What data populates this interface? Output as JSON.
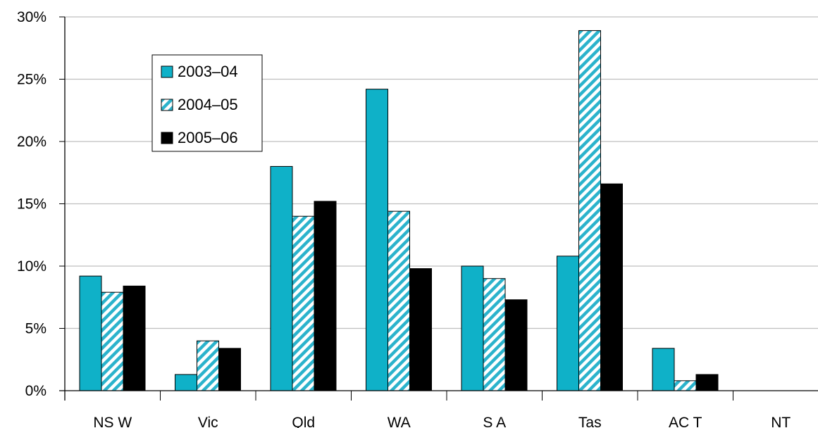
{
  "chart_data": {
    "type": "bar",
    "categories": [
      "NS W",
      "Vic",
      "Qld",
      "WA",
      "S A",
      "Tas",
      "AC T",
      "NT"
    ],
    "series": [
      {
        "name": "2003–04",
        "values": [
          9.2,
          1.3,
          18.0,
          24.2,
          10.0,
          10.8,
          3.4,
          0
        ]
      },
      {
        "name": "2004–05",
        "values": [
          7.9,
          4.0,
          14.0,
          14.4,
          9.0,
          28.9,
          0.8,
          0
        ]
      },
      {
        "name": "2005–06",
        "values": [
          8.4,
          3.4,
          15.2,
          9.8,
          7.3,
          16.6,
          1.3,
          0
        ]
      }
    ],
    "ylim": [
      0,
      30
    ],
    "yticks": [
      0,
      5,
      10,
      15,
      20,
      25,
      30
    ],
    "ytick_labels": [
      "0%",
      "5%",
      "10%",
      "15%",
      "20%",
      "25%",
      "30%"
    ],
    "grid": true,
    "legend_position": "top-left",
    "title": "",
    "xlabel": "",
    "ylabel": ""
  },
  "colors": {
    "series_1": "#0fb1c8",
    "series_2_stripe": "#2bb3cc",
    "series_2_bg": "#ffffff",
    "series_3": "#000000",
    "grid": "#bfbfbf"
  }
}
